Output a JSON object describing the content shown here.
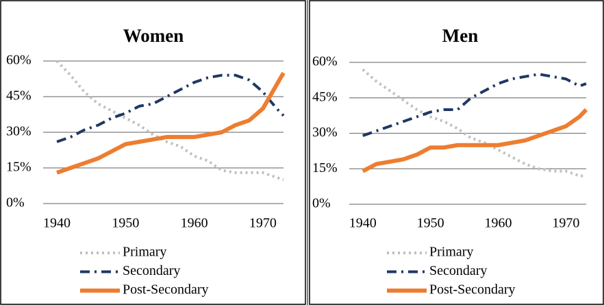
{
  "chart_data": [
    {
      "type": "line",
      "title": "Women",
      "x": [
        1940,
        1942,
        1944,
        1946,
        1948,
        1950,
        1952,
        1954,
        1956,
        1958,
        1960,
        1962,
        1964,
        1966,
        1968,
        1970,
        1972,
        1973
      ],
      "xlim": [
        1938,
        1973
      ],
      "xticks": [
        1940,
        1950,
        1960,
        1970
      ],
      "ylim": [
        0,
        60
      ],
      "yticks": [
        {
          "value": 0,
          "label": "0%"
        },
        {
          "value": 15,
          "label": "15%"
        },
        {
          "value": 30,
          "label": "30%"
        },
        {
          "value": 45,
          "label": "45%"
        },
        {
          "value": 60,
          "label": "60%"
        }
      ],
      "grid": true,
      "series": [
        {
          "name": "Primary",
          "color": "#bfbfbf",
          "style": "dotted",
          "values": [
            60,
            54,
            47,
            42,
            39,
            36,
            33,
            29,
            26,
            24,
            20,
            18,
            14,
            13,
            13,
            13,
            11,
            10
          ]
        },
        {
          "name": "Secondary",
          "color": "#1f3864",
          "style": "dash-dot",
          "values": [
            26,
            28,
            31,
            33,
            36,
            38,
            41,
            42,
            45,
            48,
            51,
            53,
            54,
            54,
            52,
            47,
            40,
            37
          ]
        },
        {
          "name": "Post-Secondary",
          "color": "#ed7d31",
          "style": "solid",
          "values": [
            13,
            15,
            17,
            19,
            22,
            25,
            26,
            27,
            28,
            28,
            28,
            29,
            30,
            33,
            35,
            40,
            50,
            55
          ]
        }
      ]
    },
    {
      "type": "line",
      "title": "Men",
      "x": [
        1940,
        1942,
        1944,
        1946,
        1948,
        1950,
        1952,
        1954,
        1956,
        1958,
        1960,
        1962,
        1964,
        1966,
        1968,
        1970,
        1972,
        1973
      ],
      "xlim": [
        1938,
        1973
      ],
      "xticks": [
        1940,
        1950,
        1960,
        1970
      ],
      "ylim": [
        0,
        60
      ],
      "yticks": [
        {
          "value": 0,
          "label": "0%"
        },
        {
          "value": 15,
          "label": "15%"
        },
        {
          "value": 30,
          "label": "30%"
        },
        {
          "value": 45,
          "label": "45%"
        },
        {
          "value": 60,
          "label": "60%"
        }
      ],
      "grid": true,
      "series": [
        {
          "name": "Primary",
          "color": "#bfbfbf",
          "style": "dotted",
          "values": [
            57,
            52,
            48,
            44,
            40,
            37,
            35,
            32,
            28,
            26,
            23,
            20,
            17,
            15,
            14,
            14,
            12,
            12
          ]
        },
        {
          "name": "Secondary",
          "color": "#1f3864",
          "style": "dash-dot",
          "values": [
            29,
            31,
            33,
            35,
            37,
            39,
            40,
            40,
            45,
            48,
            51,
            53,
            54,
            55,
            54,
            53,
            50,
            51
          ]
        },
        {
          "name": "Post-Secondary",
          "color": "#ed7d31",
          "style": "solid",
          "values": [
            14,
            17,
            18,
            19,
            21,
            24,
            24,
            25,
            25,
            25,
            25,
            26,
            27,
            29,
            31,
            33,
            37,
            40
          ]
        }
      ]
    }
  ]
}
